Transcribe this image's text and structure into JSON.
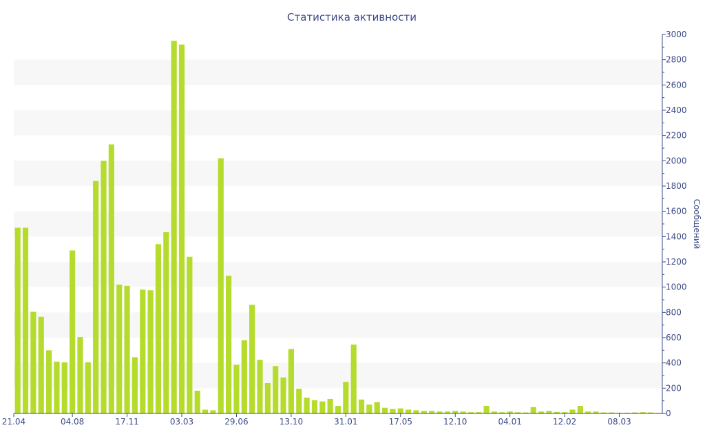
{
  "chart_data": {
    "type": "bar",
    "title": "Статистика активности",
    "ylabel": "Сообщений",
    "xlabel": "",
    "ylim": [
      0,
      3000
    ],
    "y_ticks": [
      0,
      200,
      400,
      600,
      800,
      1000,
      1200,
      1400,
      1600,
      1800,
      2000,
      2200,
      2400,
      2600,
      2800,
      3000
    ],
    "y_axis_side": "right",
    "grid": "alternating horizontal bands",
    "x_tick_labels": [
      {
        "label": "21.04",
        "index": 0
      },
      {
        "label": "04.08",
        "index": 7.5
      },
      {
        "label": "17.11",
        "index": 14.5
      },
      {
        "label": "03.03",
        "index": 21.5
      },
      {
        "label": "29.06",
        "index": 28.5
      },
      {
        "label": "13.10",
        "index": 35.5
      },
      {
        "label": "31.01",
        "index": 42.5
      },
      {
        "label": "17.05",
        "index": 49.5
      },
      {
        "label": "12.10",
        "index": 56.5
      },
      {
        "label": "04.01",
        "index": 63.5
      },
      {
        "label": "12.02",
        "index": 70.5
      },
      {
        "label": "08.03",
        "index": 77.5
      }
    ],
    "values": [
      1470,
      1470,
      805,
      765,
      500,
      410,
      405,
      1290,
      605,
      405,
      1840,
      2000,
      2130,
      1020,
      1010,
      445,
      980,
      975,
      1340,
      1435,
      2950,
      2920,
      1240,
      180,
      30,
      25,
      2020,
      1090,
      385,
      580,
      860,
      425,
      240,
      375,
      285,
      510,
      195,
      125,
      105,
      95,
      115,
      60,
      250,
      545,
      110,
      70,
      90,
      45,
      35,
      40,
      30,
      25,
      20,
      20,
      15,
      15,
      20,
      15,
      10,
      10,
      60,
      15,
      10,
      15,
      10,
      8,
      50,
      15,
      20,
      12,
      10,
      30,
      60,
      15,
      15,
      8,
      8,
      6,
      6,
      8,
      10,
      8,
      5
    ],
    "bar_color": "#b5dc2c",
    "text_color": "#3b4a86"
  }
}
